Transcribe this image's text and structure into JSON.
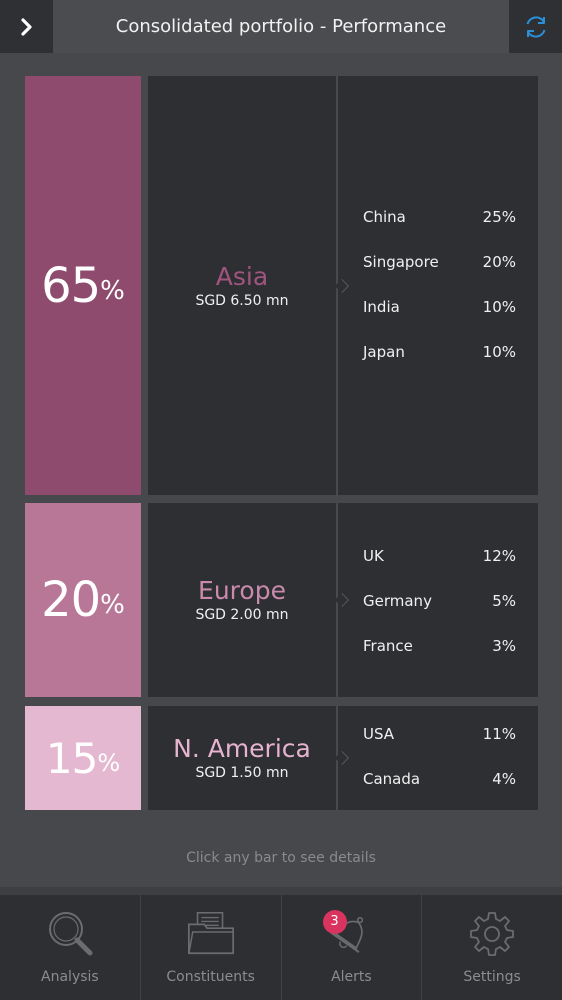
{
  "header": {
    "title": "Consolidated portfolio - Performance",
    "back_icon": "chevron-right-icon",
    "refresh_icon": "refresh-icon"
  },
  "regions": [
    {
      "percent": "65",
      "percent_sign": "%",
      "name": "Asia",
      "amount": "SGD 6.50 mn",
      "bar_color": "#8e4b6e",
      "name_color": "#a1547e",
      "countries": [
        {
          "name": "China",
          "pct": "25%"
        },
        {
          "name": "Singapore",
          "pct": "20%"
        },
        {
          "name": "India",
          "pct": "10%"
        },
        {
          "name": "Japan",
          "pct": "10%"
        }
      ]
    },
    {
      "percent": "20",
      "percent_sign": "%",
      "name": "Europe",
      "amount": "SGD 2.00 mn",
      "bar_color": "#b87797",
      "name_color": "#c98aab",
      "countries": [
        {
          "name": "UK",
          "pct": "12%"
        },
        {
          "name": "Germany",
          "pct": "5%"
        },
        {
          "name": "France",
          "pct": "3%"
        }
      ]
    },
    {
      "percent": "15",
      "percent_sign": "%",
      "name": "N. America",
      "amount": "SGD 1.50 mn",
      "bar_color": "#e5b8d1",
      "name_color": "#e7b3cf",
      "countries": [
        {
          "name": "USA",
          "pct": "11%"
        },
        {
          "name": "Canada",
          "pct": "4%"
        }
      ]
    }
  ],
  "hint": "Click any bar to see details",
  "nav": {
    "tabs": [
      {
        "label": "Analysis",
        "icon": "magnifier-icon"
      },
      {
        "label": "Constituents",
        "icon": "folder-icon"
      },
      {
        "label": "Alerts",
        "icon": "bell-icon",
        "badge": "3"
      },
      {
        "label": "Settings",
        "icon": "gear-icon"
      }
    ]
  }
}
